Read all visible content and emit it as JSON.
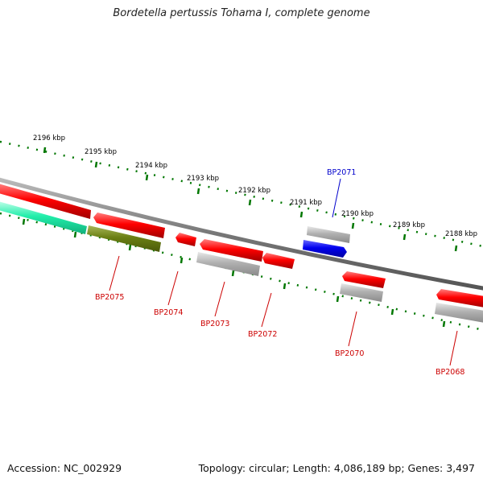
{
  "map": {
    "title": "Bordetella pertussis Tohama I, complete genome",
    "footer": {
      "accession": "Accession: NC_002929",
      "summary": "Topology: circular; Length: 4,086,189 bp; Genes: 3,497"
    }
  },
  "scale": {
    "unit": "kbp",
    "labels": [
      "2196 kbp",
      "2195 kbp",
      "2194 kbp",
      "2193 kbp",
      "2192 kbp",
      "2191 kbp",
      "2190 kbp",
      "2189 kbp",
      "2188 kbp"
    ]
  },
  "genes": [
    {
      "label": "BP2075",
      "strand": "-",
      "color": "#e00000"
    },
    {
      "label": "BP2074",
      "strand": "-",
      "color": "#e00000"
    },
    {
      "label": "BP2073",
      "strand": "-",
      "color": "#e00000"
    },
    {
      "label": "BP2072",
      "strand": "-",
      "color": "#e00000"
    },
    {
      "label": "BP2071",
      "strand": "+",
      "color": "#0000dd"
    },
    {
      "label": "BP2070",
      "strand": "-",
      "color": "#e00000"
    },
    {
      "label": "BP2068",
      "strand": "-",
      "color": "#e00000"
    }
  ],
  "colors": {
    "backbone": "#808080",
    "tick": "#007700",
    "cds_forward": "#e00000",
    "cds_reverse": "#e00000",
    "blue_feature": "#0000dd",
    "gray_feature": "#a8a8a8",
    "olive_feature": "#6b7f14",
    "teal_feature": "#22ddaa",
    "label_red": "#cc0000",
    "label_blue": "#0000cc"
  }
}
